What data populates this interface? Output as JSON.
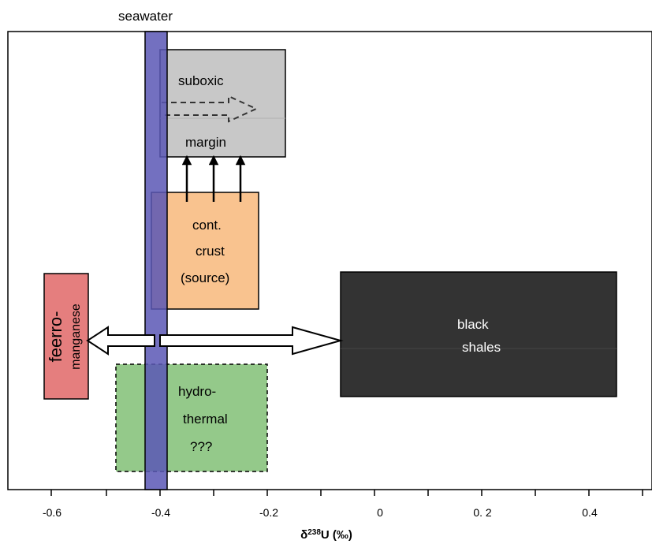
{
  "seawater_label": "seawater",
  "axis": {
    "title_prefix": "δ",
    "title_sup": "238",
    "title_suffix": "U (‰)",
    "ticks": [
      {
        "value": -0.6,
        "label": "-0.6"
      },
      {
        "value": -0.4,
        "label": "-0.4"
      },
      {
        "value": -0.2,
        "label": "-0.2"
      },
      {
        "value": 0,
        "label": "0"
      },
      {
        "value": 0.2,
        "label": "0. 2"
      },
      {
        "value": 0.4,
        "label": "0.4"
      }
    ],
    "range": [
      -0.65,
      0.5
    ]
  },
  "boxes": {
    "suboxic": {
      "line1": "suboxic",
      "line2": "margin",
      "range": [
        -0.4,
        -0.17
      ],
      "color": "#c8c8c8"
    },
    "crust": {
      "line1": "cont.",
      "line2": "crust",
      "line3": "(source)",
      "range": [
        -0.42,
        -0.22
      ],
      "color": "#f9c38f"
    },
    "ferro": {
      "line1": "feerro-",
      "line2": "manganese",
      "range": [
        -0.62,
        -0.54
      ],
      "color": "#e57e7e"
    },
    "hydro": {
      "line1": "hydro-",
      "line2": "thermal",
      "line3": "???",
      "range": [
        -0.48,
        -0.2
      ],
      "color": "#94c98a"
    },
    "shales": {
      "line1": "black",
      "line2": "shales",
      "range": [
        -0.07,
        0.45
      ],
      "color": "#333333"
    }
  },
  "seawater_band": {
    "range": [
      -0.43,
      -0.39
    ],
    "color": "#5b57b5"
  }
}
